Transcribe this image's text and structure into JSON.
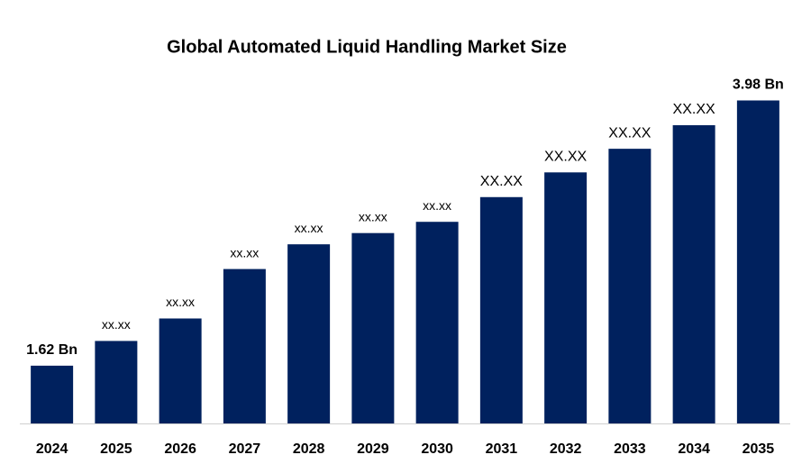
{
  "chart_data": {
    "type": "bar",
    "title": "Global Automated Liquid Handling Market Size",
    "categories": [
      "2024",
      "2025",
      "2026",
      "2027",
      "2028",
      "2029",
      "2030",
      "2031",
      "2032",
      "2033",
      "2034",
      "2035"
    ],
    "values": [
      1.62,
      1.84,
      2.04,
      2.48,
      2.7,
      2.8,
      2.9,
      3.12,
      3.34,
      3.55,
      3.76,
      3.98
    ],
    "value_labels": [
      "1.62 Bn",
      "xx.xx",
      "xx.xx",
      "xx.xx",
      "xx.xx",
      "xx.xx",
      "xx.xx",
      "XX.XX",
      "XX.XX",
      "XX.XX",
      "XX.XX",
      "3.98 Bn"
    ],
    "color": "#00215e",
    "ylim": [
      1.106,
      4.0
    ]
  }
}
